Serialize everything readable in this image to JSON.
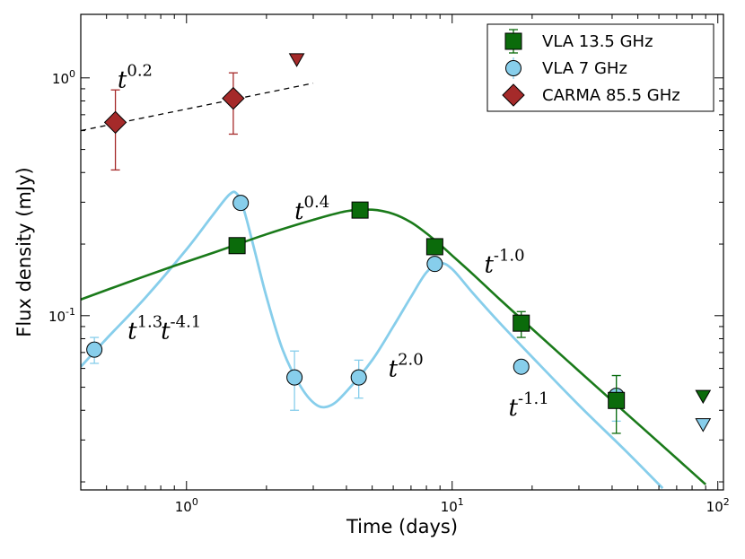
{
  "chart_data": {
    "type": "line",
    "xscale": "log",
    "yscale": "log",
    "xlim": [
      0.4,
      105
    ],
    "ylim": [
      0.0185,
      1.85
    ],
    "xlabel": "Time (days)",
    "ylabel": "Flux density (mJy)",
    "xticks": [
      {
        "base": "10",
        "exp": "0",
        "value": 1
      },
      {
        "base": "10",
        "exp": "1",
        "value": 10
      },
      {
        "base": "10",
        "exp": "2",
        "value": 100
      }
    ],
    "yticks": [
      {
        "base": "10",
        "exp": "-1",
        "value": 0.1
      },
      {
        "base": "10",
        "exp": "0",
        "value": 1
      }
    ],
    "legend": {
      "position": "top-right",
      "entries": [
        {
          "label": "VLA 13.5 GHz",
          "series": "vla135"
        },
        {
          "label": "VLA 7 GHz",
          "series": "vla7"
        },
        {
          "label": "CARMA 85.5 GHz",
          "series": "carma"
        }
      ]
    },
    "series": [
      {
        "id": "vla135",
        "name": "VLA 13.5 GHz",
        "marker": "square",
        "color": "#006400",
        "points": [
          {
            "x": 1.55,
            "y": 0.197,
            "lo": 0.197,
            "hi": 0.197
          },
          {
            "x": 4.5,
            "y": 0.278,
            "lo": 0.278,
            "hi": 0.278
          },
          {
            "x": 8.6,
            "y": 0.195,
            "lo": 0.195,
            "hi": 0.195
          },
          {
            "x": 18.2,
            "y": 0.093,
            "lo": 0.081,
            "hi": 0.104
          },
          {
            "x": 41.5,
            "y": 0.044,
            "lo": 0.032,
            "hi": 0.056
          }
        ],
        "upper_limits": [
          {
            "x": 88,
            "y": 0.046
          }
        ],
        "model": [
          {
            "x": 0.4,
            "y": 0.117
          },
          {
            "x": 0.6,
            "y": 0.138
          },
          {
            "x": 0.9,
            "y": 0.162
          },
          {
            "x": 1.3,
            "y": 0.186
          },
          {
            "x": 2.0,
            "y": 0.22
          },
          {
            "x": 3.0,
            "y": 0.253
          },
          {
            "x": 4.0,
            "y": 0.275
          },
          {
            "x": 5.0,
            "y": 0.279
          },
          {
            "x": 6.0,
            "y": 0.268
          },
          {
            "x": 7.0,
            "y": 0.247
          },
          {
            "x": 8.0,
            "y": 0.222
          },
          {
            "x": 9.0,
            "y": 0.199
          },
          {
            "x": 10.0,
            "y": 0.179
          },
          {
            "x": 12.0,
            "y": 0.149
          },
          {
            "x": 15.0,
            "y": 0.118
          },
          {
            "x": 20.0,
            "y": 0.088
          },
          {
            "x": 30.0,
            "y": 0.0585
          },
          {
            "x": 45.0,
            "y": 0.039
          },
          {
            "x": 70.0,
            "y": 0.0251
          },
          {
            "x": 90.0,
            "y": 0.0195
          }
        ]
      },
      {
        "id": "vla7",
        "name": "VLA 7 GHz",
        "marker": "circle",
        "color": "#87CEEB",
        "points": [
          {
            "x": 0.45,
            "y": 0.072,
            "lo": 0.063,
            "hi": 0.081
          },
          {
            "x": 1.6,
            "y": 0.298,
            "lo": 0.298,
            "hi": 0.298
          },
          {
            "x": 2.55,
            "y": 0.055,
            "lo": 0.04,
            "hi": 0.071
          },
          {
            "x": 4.45,
            "y": 0.055,
            "lo": 0.045,
            "hi": 0.065
          },
          {
            "x": 8.6,
            "y": 0.165,
            "lo": 0.165,
            "hi": 0.165
          },
          {
            "x": 18.2,
            "y": 0.061,
            "lo": 0.061,
            "hi": 0.061
          },
          {
            "x": 41.5,
            "y": 0.046,
            "lo": 0.036,
            "hi": 0.056
          }
        ],
        "upper_limits": [
          {
            "x": 88,
            "y": 0.035
          }
        ],
        "model": [
          {
            "x": 0.4,
            "y": 0.061
          },
          {
            "x": 0.5,
            "y": 0.08
          },
          {
            "x": 0.7,
            "y": 0.119
          },
          {
            "x": 1.0,
            "y": 0.19
          },
          {
            "x": 1.25,
            "y": 0.263
          },
          {
            "x": 1.45,
            "y": 0.323
          },
          {
            "x": 1.55,
            "y": 0.325
          },
          {
            "x": 1.65,
            "y": 0.275
          },
          {
            "x": 1.8,
            "y": 0.19
          },
          {
            "x": 2.0,
            "y": 0.12
          },
          {
            "x": 2.3,
            "y": 0.072
          },
          {
            "x": 2.7,
            "y": 0.05
          },
          {
            "x": 3.1,
            "y": 0.042
          },
          {
            "x": 3.5,
            "y": 0.042
          },
          {
            "x": 4.0,
            "y": 0.048
          },
          {
            "x": 5.0,
            "y": 0.065
          },
          {
            "x": 6.0,
            "y": 0.09
          },
          {
            "x": 7.0,
            "y": 0.12
          },
          {
            "x": 8.0,
            "y": 0.152
          },
          {
            "x": 9.0,
            "y": 0.166
          },
          {
            "x": 10.0,
            "y": 0.157
          },
          {
            "x": 12.0,
            "y": 0.124
          },
          {
            "x": 15.0,
            "y": 0.094
          },
          {
            "x": 20.0,
            "y": 0.067
          },
          {
            "x": 30.0,
            "y": 0.042
          },
          {
            "x": 45.0,
            "y": 0.027
          },
          {
            "x": 62.0,
            "y": 0.0188
          }
        ]
      },
      {
        "id": "carma",
        "name": "CARMA 85.5 GHz",
        "marker": "diamond",
        "color": "#A52A2A",
        "points": [
          {
            "x": 0.54,
            "y": 0.65,
            "lo": 0.41,
            "hi": 0.89
          },
          {
            "x": 1.5,
            "y": 0.82,
            "lo": 0.58,
            "hi": 1.05
          }
        ],
        "upper_limits": [
          {
            "x": 2.6,
            "y": 1.2
          }
        ],
        "model": [
          {
            "x": 0.4,
            "y": 0.6
          },
          {
            "x": 3.0,
            "y": 0.95
          }
        ]
      }
    ],
    "annotations": [
      {
        "base": "t",
        "exp": "0.2",
        "x": 0.55,
        "y": 0.91
      },
      {
        "base": "t",
        "exp": "0.4",
        "x": 2.55,
        "y": 0.255
      },
      {
        "base": "t",
        "exp": "1.3",
        "x": 0.6,
        "y": 0.08
      },
      {
        "base": "t",
        "exp": "-4.1",
        "x": 0.8,
        "y": 0.08
      },
      {
        "base": "t",
        "exp": "2.0",
        "x": 5.75,
        "y": 0.0555
      },
      {
        "base": "t",
        "exp": "-1.0",
        "x": 13.2,
        "y": 0.152
      },
      {
        "base": "t",
        "exp": "-1.1",
        "x": 16.3,
        "y": 0.038
      }
    ]
  }
}
